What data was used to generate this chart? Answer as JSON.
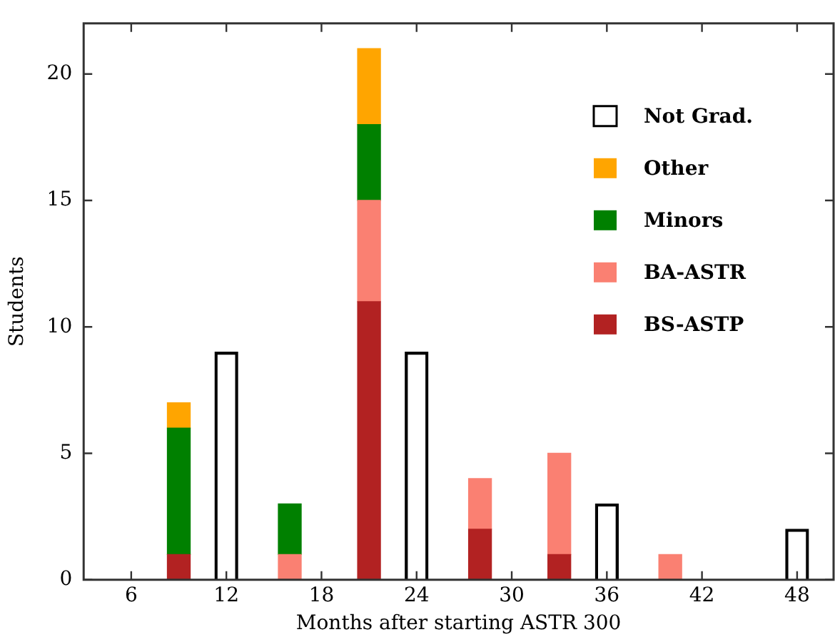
{
  "chart_data": {
    "type": "bar",
    "stacked": true,
    "xlabel": "Months after starting ASTR 300",
    "ylabel": "Students",
    "x": [
      9,
      12,
      16,
      21,
      24,
      28,
      33,
      36,
      40,
      48
    ],
    "series": [
      {
        "name": "BS-ASTP",
        "color": "#b22222",
        "values": [
          1,
          null,
          null,
          11,
          null,
          2,
          1,
          null,
          null,
          null
        ]
      },
      {
        "name": "BA-ASTR",
        "color": "#fa8072",
        "values": [
          null,
          null,
          1,
          4,
          null,
          2,
          4,
          null,
          1,
          null
        ]
      },
      {
        "name": "Minors",
        "color": "#008000",
        "values": [
          5,
          null,
          2,
          3,
          null,
          null,
          null,
          null,
          null,
          null
        ]
      },
      {
        "name": "Other",
        "color": "#ffa500",
        "values": [
          1,
          null,
          null,
          3,
          null,
          null,
          null,
          null,
          null,
          null
        ]
      },
      {
        "name": "Not Grad.",
        "color": "#000000",
        "values": [
          null,
          9,
          null,
          null,
          9,
          null,
          null,
          3,
          null,
          2
        ]
      }
    ],
    "xlim": [
      3,
      50.3
    ],
    "xticks": [
      6,
      12,
      18,
      24,
      30,
      36,
      42,
      48
    ],
    "ylim": [
      0,
      22
    ],
    "yticks": [
      0,
      5,
      10,
      15,
      20
    ],
    "legend": "top right",
    "grid": false
  }
}
